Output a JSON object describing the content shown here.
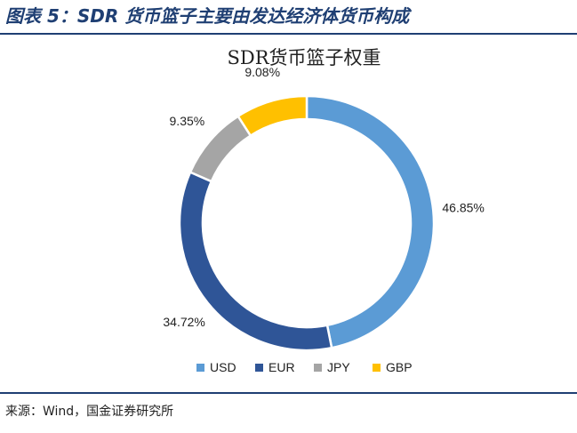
{
  "figure": {
    "title": "图表 5：SDR 货币篮子主要由发达经济体货币构成",
    "source": "来源：Wind，国金证券研究所"
  },
  "chart_data": {
    "type": "pie",
    "donut": true,
    "title": "SDR货币篮子权重",
    "legend_position": "bottom",
    "slices": [
      {
        "name": "USD",
        "value": 46.85,
        "label": "46.85%",
        "color": "#5b9bd5"
      },
      {
        "name": "EUR",
        "value": 34.72,
        "label": "34.72%",
        "color": "#2f5597"
      },
      {
        "name": "JPY",
        "value": 9.35,
        "label": "9.35%",
        "color": "#a5a5a5"
      },
      {
        "name": "GBP",
        "value": 9.08,
        "label": "9.08%",
        "color": "#ffc000"
      }
    ]
  }
}
